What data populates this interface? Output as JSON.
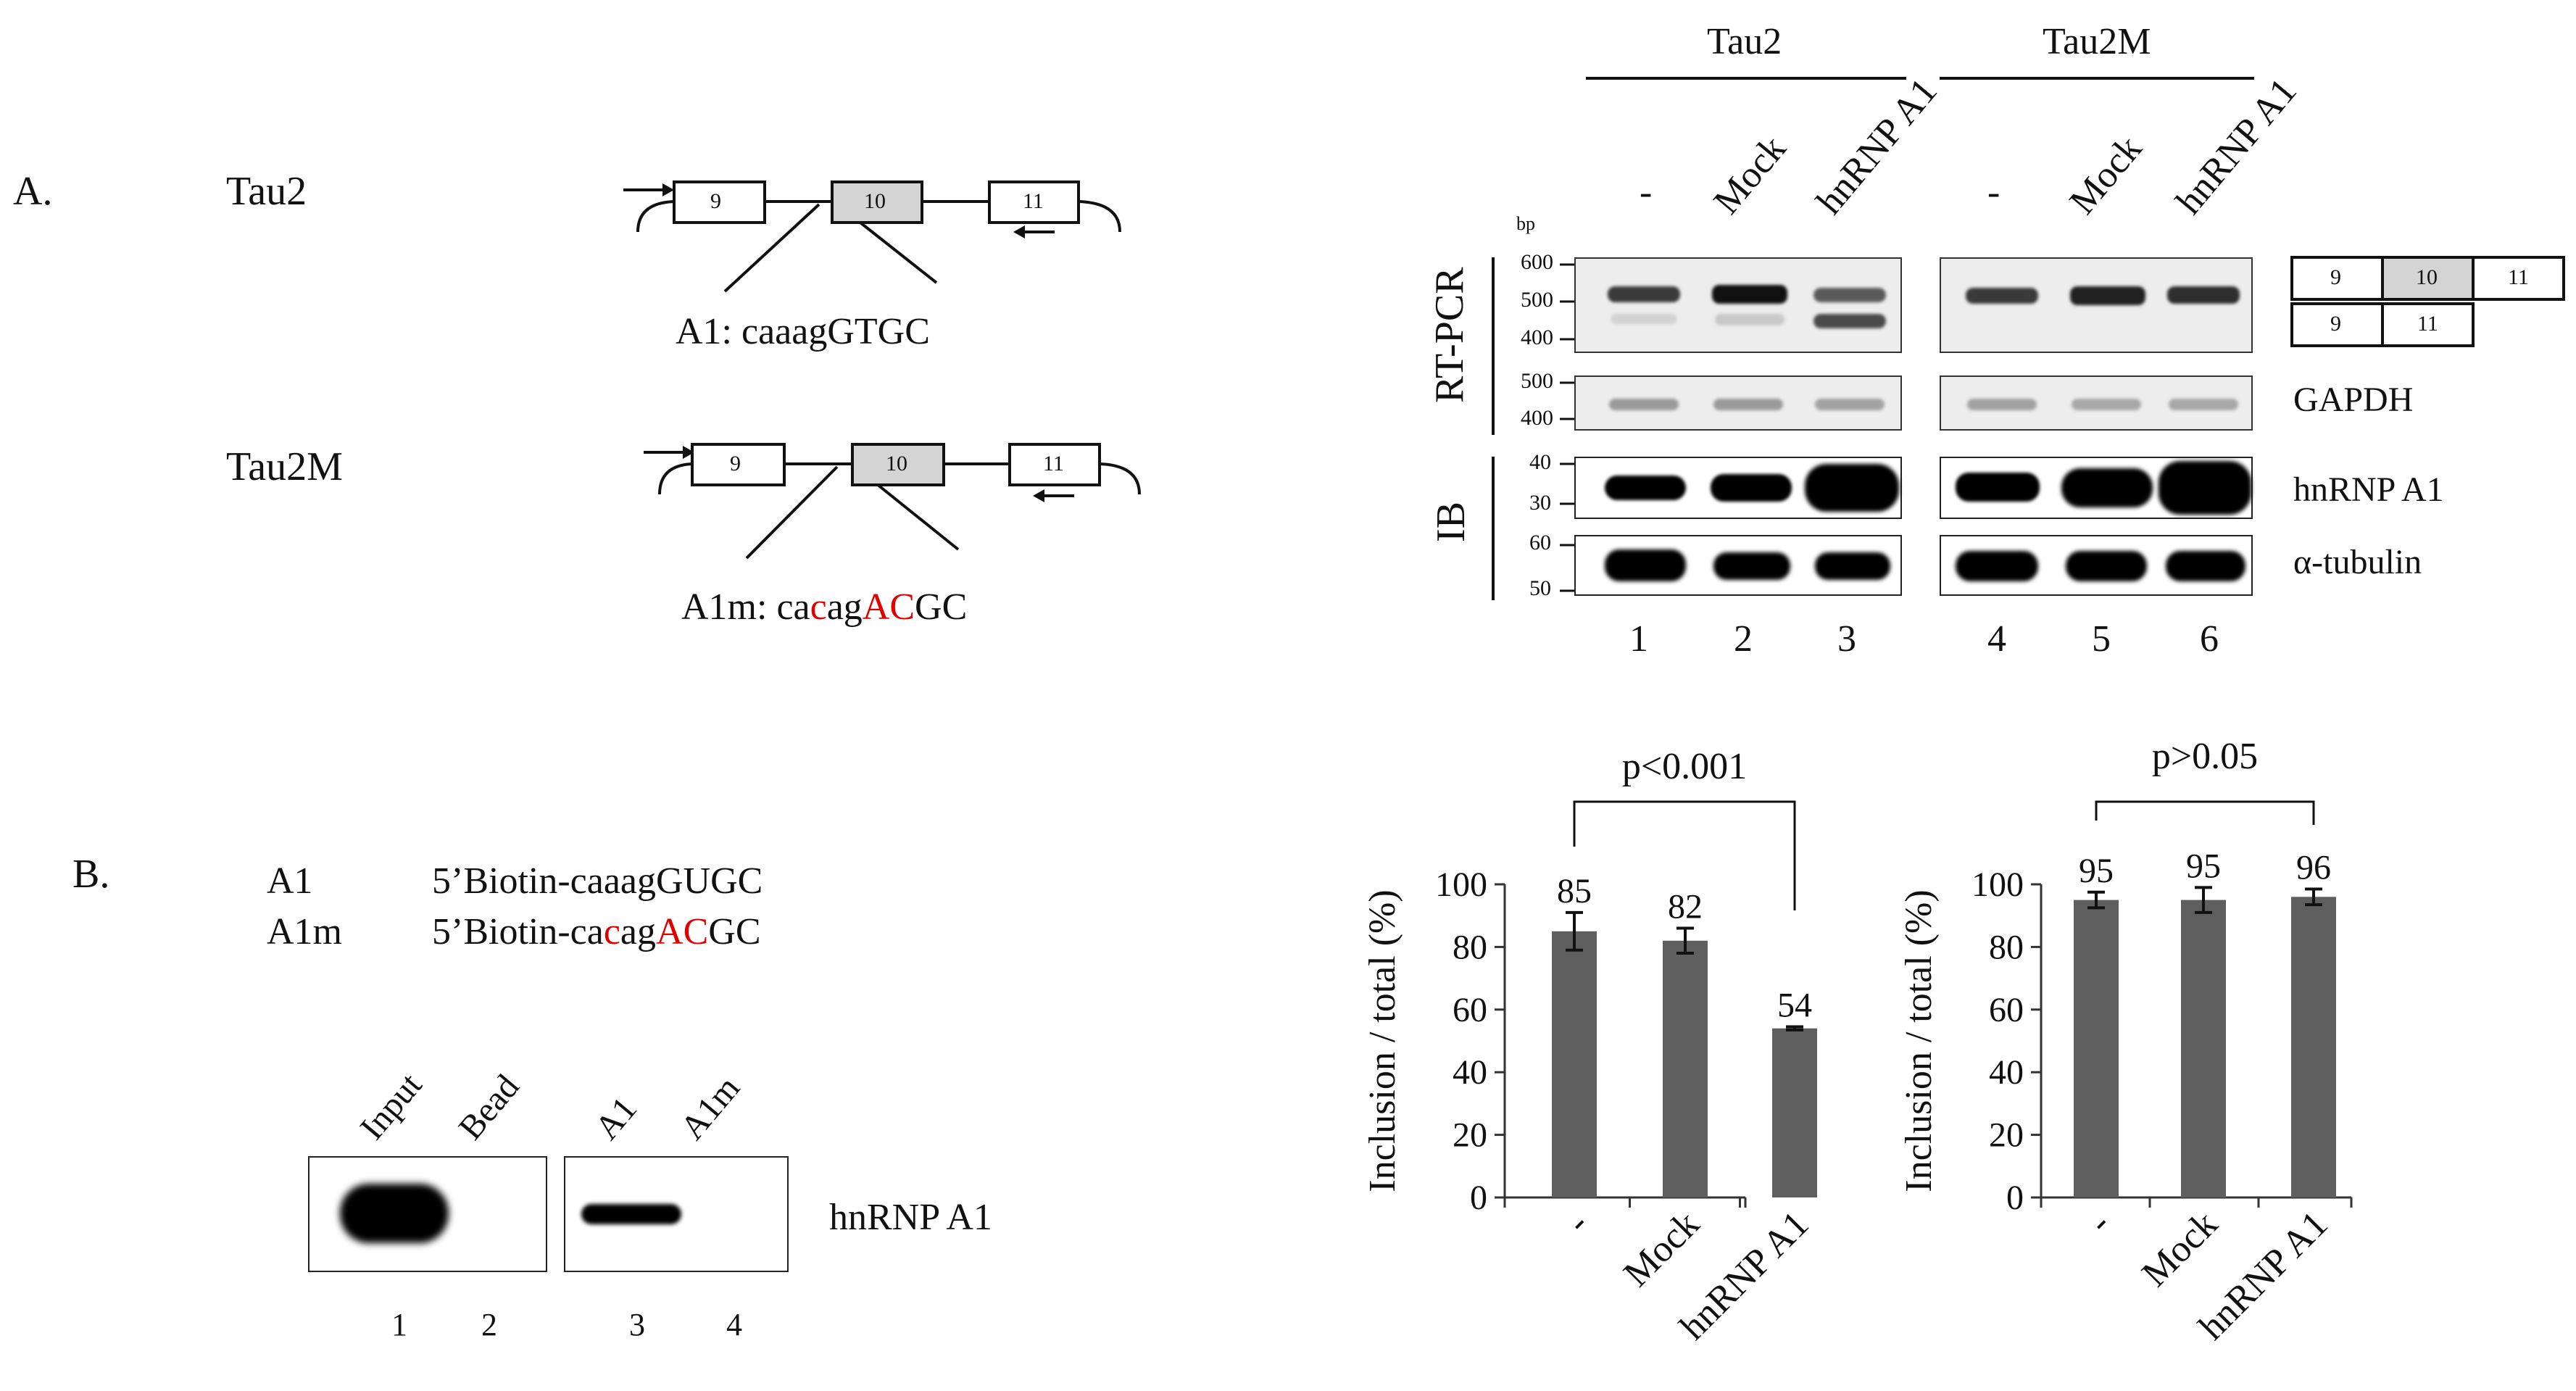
{
  "panelA": {
    "letter": "A.",
    "tau2": {
      "label": "Tau2",
      "exons": [
        "9",
        "10",
        "11"
      ],
      "site_prefix": "A1: caaagGTGC"
    },
    "tau2m": {
      "label": "Tau2M",
      "exons": [
        "9",
        "10",
        "11"
      ],
      "site_parts": [
        "A1m: ca",
        "c",
        "ag",
        "AC",
        "GC"
      ]
    }
  },
  "gel": {
    "groups": [
      "Tau2",
      "Tau2M"
    ],
    "conditions": [
      "-",
      "Mock",
      "hnRNP A1",
      "-",
      "Mock",
      "hnRNP A1"
    ],
    "bp_unit": "bp",
    "rtpcr_label": "RT-PCR",
    "ib_label": "IB",
    "rtpcr_ticks": [
      "600",
      "500",
      "400"
    ],
    "gapdh_ticks": [
      "500",
      "400"
    ],
    "a1_ticks": [
      "40",
      "30"
    ],
    "tub_ticks": [
      "60",
      "50"
    ],
    "row_labels": [
      "GAPDH",
      "hnRNP A1",
      "α-tubulin"
    ],
    "lanes": [
      "1",
      "2",
      "3",
      "4",
      "5",
      "6"
    ],
    "product_exons_full": [
      "9",
      "10",
      "11"
    ],
    "product_exons_skip": [
      "9",
      "11"
    ]
  },
  "panelB": {
    "letter": "B.",
    "probes": [
      {
        "name": "A1",
        "seq_parts": [
          "5’Biotin-caaagGUGC"
        ]
      },
      {
        "name": "A1m",
        "seq_parts": [
          "5’Biotin-ca",
          "c",
          "ag",
          "AC",
          "GC"
        ]
      }
    ],
    "lane_headers": [
      "Input",
      "Bead",
      "A1",
      "A1m"
    ],
    "blot_label": "hnRNP A1",
    "lanes": [
      "1",
      "2",
      "3",
      "4"
    ]
  },
  "chart_data": [
    {
      "type": "bar",
      "categories": [
        "-",
        "Mock",
        "hnRNP A1"
      ],
      "values": [
        85,
        82,
        54
      ],
      "errors": [
        6,
        4,
        0.5
      ],
      "data_labels": [
        "85",
        "82",
        "54"
      ],
      "ylabel": "Inclusion / total (%)",
      "yticks": [
        "0",
        "20",
        "40",
        "60",
        "80",
        "100"
      ],
      "ylim": [
        0,
        100
      ],
      "significance": "p<0.001",
      "bar_color": "#5f5f5f"
    },
    {
      "type": "bar",
      "categories": [
        "-",
        "Mock",
        "hnRNP A1"
      ],
      "values": [
        95,
        95,
        96
      ],
      "errors": [
        2.5,
        4,
        2.5
      ],
      "data_labels": [
        "95",
        "95",
        "96"
      ],
      "ylabel": "Inclusion / total (%)",
      "yticks": [
        "0",
        "20",
        "40",
        "60",
        "80",
        "100"
      ],
      "ylim": [
        0,
        100
      ],
      "significance": "p>0.05",
      "bar_color": "#5f5f5f"
    }
  ]
}
